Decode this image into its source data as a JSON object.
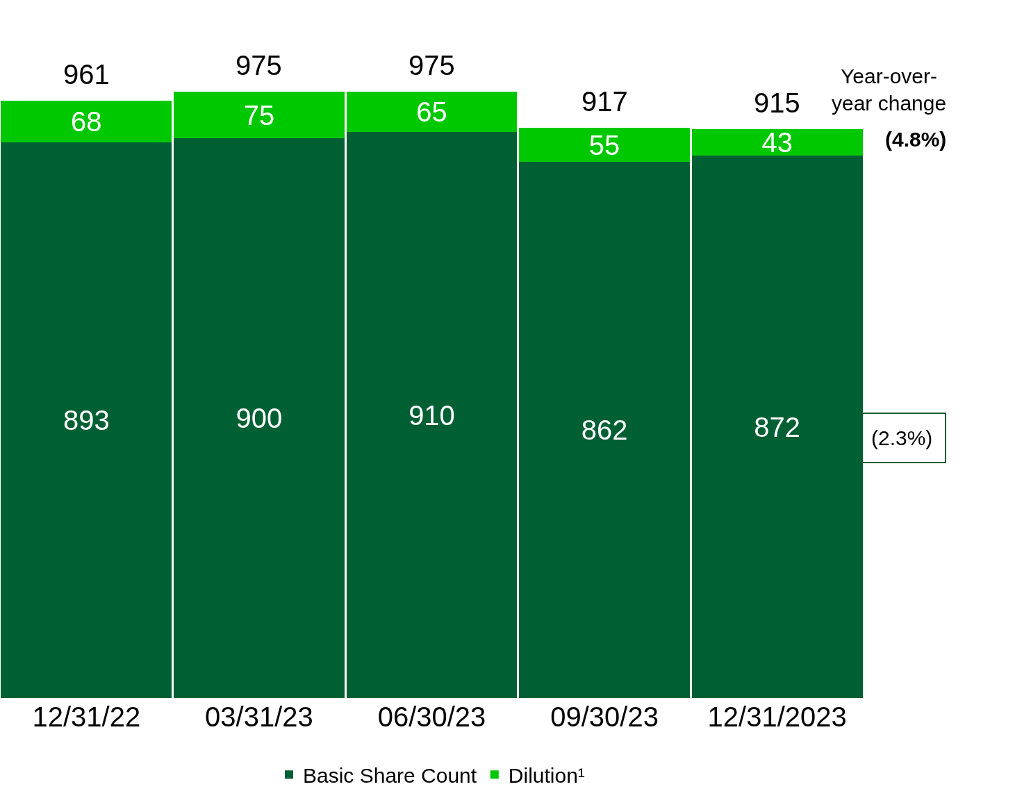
{
  "chart_data": {
    "type": "bar",
    "stacked": true,
    "categories": [
      "12/31/22",
      "03/31/23",
      "06/30/23",
      "09/30/23",
      "12/31/2023"
    ],
    "series": [
      {
        "name": "Basic Share Count",
        "color": "#005f33",
        "values": [
          893,
          900,
          910,
          862,
          872
        ]
      },
      {
        "name": "Dilution¹",
        "color": "#00c800",
        "values": [
          68,
          75,
          65,
          55,
          43
        ]
      }
    ],
    "totals": [
      "961",
      "975",
      "975",
      "917",
      "915"
    ],
    "data_labels": true,
    "tick_labels": "x",
    "legend": "bottom",
    "annotations": [
      "Year-over-year change",
      "(4.8%)",
      "(2.3%)"
    ]
  }
}
